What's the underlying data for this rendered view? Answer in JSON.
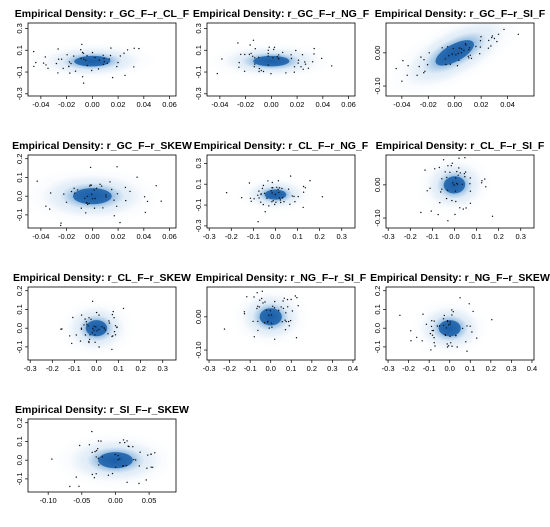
{
  "figure": {
    "panels": [
      {
        "title": "Empirical Density: r_GC_F–r_CL_F"
      },
      {
        "title": "Empirical Density: r_GC_F–r_NG_F"
      },
      {
        "title": "Empirical Density: r_GC_F–r_SI_F"
      },
      {
        "title": "Empirical Density: r_GC_F–r_SKEW"
      },
      {
        "title": "Empirical Density: r_CL_F–r_NG_F"
      },
      {
        "title": "Empirical Density: r_CL_F–r_SI_F"
      },
      {
        "title": "Empirical Density: r_CL_F–r_SKEW"
      },
      {
        "title": "Empirical Density: r_NG_F–r_SI_F"
      },
      {
        "title": "Empirical Density: r_NG_F–r_SKEW"
      },
      {
        "title": "Empirical Density: r_SI_F–r_SKEW"
      }
    ]
  },
  "chart_data": [
    {
      "type": "heatmap",
      "title": "Empirical Density: r_GC_F–r_CL_F",
      "xlim": [
        -0.05,
        0.065
      ],
      "ylim": [
        -0.32,
        0.35
      ],
      "xticks": [
        "-0.04",
        "-0.02",
        "0.00",
        "0.02",
        "0.04",
        "0.06"
      ],
      "xtick_values": [
        -0.04,
        -0.02,
        0.0,
        0.02,
        0.04,
        0.06
      ],
      "yticks": [
        "-0.3",
        "-0.1",
        "0.1",
        "0.3"
      ],
      "ytick_values": [
        -0.3,
        -0.1,
        0.1,
        0.3
      ],
      "density": {
        "center": [
          0.0,
          0.0
        ],
        "spread": [
          0.013,
          0.045
        ],
        "correlation": 0.05
      }
    },
    {
      "type": "heatmap",
      "title": "Empirical Density: r_GC_F–r_NG_F",
      "xlim": [
        -0.05,
        0.065
      ],
      "ylim": [
        -0.32,
        0.35
      ],
      "xticks": [
        "-0.04",
        "-0.02",
        "0.00",
        "0.02",
        "0.04",
        "0.06"
      ],
      "xtick_values": [
        -0.04,
        -0.02,
        0.0,
        0.02,
        0.04,
        0.06
      ],
      "yticks": [
        "-0.3",
        "-0.1",
        "0.1",
        "0.3"
      ],
      "ytick_values": [
        -0.3,
        -0.1,
        0.1,
        0.3
      ],
      "density": {
        "center": [
          0.0,
          0.0
        ],
        "spread": [
          0.013,
          0.045
        ],
        "correlation": 0.0
      }
    },
    {
      "type": "heatmap",
      "title": "Empirical Density: r_GC_F–r_SI_F",
      "xlim": [
        -0.052,
        0.06
      ],
      "ylim": [
        -0.13,
        0.09
      ],
      "xticks": [
        "-0.04",
        "-0.02",
        "0.00",
        "0.02",
        "0.04"
      ],
      "xtick_values": [
        -0.04,
        -0.02,
        0.0,
        0.02,
        0.04
      ],
      "yticks": [
        "-0.10",
        "0.00"
      ],
      "ytick_values": [
        -0.1,
        0.0
      ],
      "density": {
        "center": [
          0.0,
          0.0
        ],
        "spread": [
          0.015,
          0.024
        ],
        "correlation": 0.8
      }
    },
    {
      "type": "heatmap",
      "title": "Empirical Density: r_GC_F–r_SKEW",
      "xlim": [
        -0.05,
        0.065
      ],
      "ylim": [
        -0.17,
        0.22
      ],
      "xticks": [
        "-0.04",
        "-0.02",
        "0.00",
        "0.02",
        "0.04",
        "0.06"
      ],
      "xtick_values": [
        -0.04,
        -0.02,
        0.0,
        0.02,
        0.04,
        0.06
      ],
      "yticks": [
        "-0.1",
        "0.0",
        "0.1",
        "0.2"
      ],
      "ytick_values": [
        -0.1,
        0.0,
        0.1,
        0.2
      ],
      "density": {
        "center": [
          0.0,
          0.0
        ],
        "spread": [
          0.014,
          0.04
        ],
        "correlation": 0.0
      }
    },
    {
      "type": "heatmap",
      "title": "Empirical Density: r_CL_F–r_NG_F",
      "xlim": [
        -0.31,
        0.36
      ],
      "ylim": [
        -0.32,
        0.38
      ],
      "xticks": [
        "-0.3",
        "-0.2",
        "-0.1",
        "0.0",
        "0.1",
        "0.2",
        "0.3"
      ],
      "xtick_values": [
        -0.3,
        -0.2,
        -0.1,
        0.0,
        0.1,
        0.2,
        0.3
      ],
      "yticks": [
        "-0.3",
        "-0.1",
        "0.1",
        "0.3"
      ],
      "ytick_values": [
        -0.3,
        -0.1,
        0.1,
        0.3
      ],
      "density": {
        "center": [
          0.0,
          0.0
        ],
        "spread": [
          0.045,
          0.045
        ],
        "correlation": 0.0
      }
    },
    {
      "type": "heatmap",
      "title": "Empirical Density: r_CL_F–r_SI_F",
      "xlim": [
        -0.31,
        0.36
      ],
      "ylim": [
        -0.13,
        0.09
      ],
      "xticks": [
        "-0.3",
        "-0.2",
        "-0.1",
        "0.0",
        "0.1",
        "0.2",
        "0.3"
      ],
      "xtick_values": [
        -0.3,
        -0.2,
        -0.1,
        0.0,
        0.1,
        0.2,
        0.3
      ],
      "yticks": [
        "-0.10",
        "0.00"
      ],
      "ytick_values": [
        -0.1,
        0.0
      ],
      "density": {
        "center": [
          0.0,
          0.0
        ],
        "spread": [
          0.045,
          0.024
        ],
        "correlation": 0.1
      }
    },
    {
      "type": "heatmap",
      "title": "Empirical Density: r_CL_F–r_SKEW",
      "xlim": [
        -0.31,
        0.36
      ],
      "ylim": [
        -0.17,
        0.22
      ],
      "xticks": [
        "-0.3",
        "-0.2",
        "-0.1",
        "0.0",
        "0.1",
        "0.2",
        "0.3"
      ],
      "xtick_values": [
        -0.3,
        -0.2,
        -0.1,
        0.0,
        0.1,
        0.2,
        0.3
      ],
      "yticks": [
        "-0.1",
        "0.0",
        "0.1",
        "0.2"
      ],
      "ytick_values": [
        -0.1,
        0.0,
        0.1,
        0.2
      ],
      "density": {
        "center": [
          0.0,
          0.0
        ],
        "spread": [
          0.045,
          0.04
        ],
        "correlation": 0.0
      }
    },
    {
      "type": "heatmap",
      "title": "Empirical Density: r_NG_F–r_SI_F",
      "xlim": [
        -0.31,
        0.41
      ],
      "ylim": [
        -0.13,
        0.09
      ],
      "xticks": [
        "-0.3",
        "-0.2",
        "-0.1",
        "0.0",
        "0.1",
        "0.2",
        "0.3",
        "0.4"
      ],
      "xtick_values": [
        -0.3,
        -0.2,
        -0.1,
        0.0,
        0.1,
        0.2,
        0.3,
        0.4
      ],
      "yticks": [
        "-0.10",
        "0.00"
      ],
      "ytick_values": [
        -0.1,
        0.0
      ],
      "density": {
        "center": [
          0.0,
          0.0
        ],
        "spread": [
          0.05,
          0.024
        ],
        "correlation": 0.0
      }
    },
    {
      "type": "heatmap",
      "title": "Empirical Density: r_NG_F–r_SKEW",
      "xlim": [
        -0.31,
        0.41
      ],
      "ylim": [
        -0.17,
        0.22
      ],
      "xticks": [
        "-0.3",
        "-0.2",
        "-0.1",
        "0.0",
        "0.1",
        "0.2",
        "0.3",
        "0.4"
      ],
      "xtick_values": [
        -0.3,
        -0.2,
        -0.1,
        0.0,
        0.1,
        0.2,
        0.3,
        0.4
      ],
      "yticks": [
        "-0.1",
        "0.0",
        "0.1",
        "0.2"
      ],
      "ytick_values": [
        -0.1,
        0.0,
        0.1,
        0.2
      ],
      "density": {
        "center": [
          0.0,
          0.0
        ],
        "spread": [
          0.05,
          0.04
        ],
        "correlation": 0.0
      }
    },
    {
      "type": "heatmap",
      "title": "Empirical Density: r_SI_F–r_SKEW",
      "xlim": [
        -0.13,
        0.09
      ],
      "ylim": [
        -0.17,
        0.22
      ],
      "xticks": [
        "-0.10",
        "-0.05",
        "0.00",
        "0.05"
      ],
      "xtick_values": [
        -0.1,
        -0.05,
        0.0,
        0.05
      ],
      "yticks": [
        "-0.1",
        "0.0",
        "0.1",
        "0.2"
      ],
      "ytick_values": [
        -0.1,
        0.0,
        0.1,
        0.2
      ],
      "density": {
        "center": [
          0.0,
          0.0
        ],
        "spread": [
          0.024,
          0.04
        ],
        "correlation": 0.0
      }
    }
  ],
  "colors": {
    "density_light": "#e9f1fa",
    "density_mid": "#6fa6d6",
    "density_core": "#1a5ea8",
    "outlier_points": "#111111"
  }
}
